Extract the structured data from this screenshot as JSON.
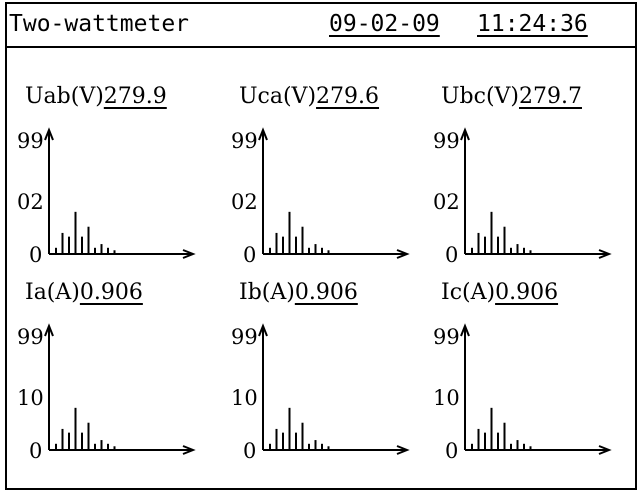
{
  "header": {
    "mode": "Two-wattmeter",
    "date": "09-02-09",
    "time": "11:24:36"
  },
  "panels": [
    {
      "id": "uab",
      "label": "Uab(V)",
      "value": "279.9",
      "y_ticks": [
        "99",
        "02",
        "0"
      ],
      "bars": [
        0.05,
        0.17,
        0.14,
        0.34,
        0.14,
        0.22,
        0.05,
        0.08,
        0.05,
        0.03
      ]
    },
    {
      "id": "uca",
      "label": "Uca(V)",
      "value": "279.6",
      "y_ticks": [
        "99",
        "02",
        "0"
      ],
      "bars": [
        0.05,
        0.17,
        0.14,
        0.34,
        0.14,
        0.22,
        0.05,
        0.08,
        0.05,
        0.03
      ]
    },
    {
      "id": "ubc",
      "label": "Ubc(V)",
      "value": "279.7",
      "y_ticks": [
        "99",
        "02",
        "0"
      ],
      "bars": [
        0.05,
        0.17,
        0.14,
        0.34,
        0.14,
        0.22,
        0.05,
        0.08,
        0.05,
        0.03
      ]
    },
    {
      "id": "ia",
      "label": "Ia(A)",
      "value": "0.906",
      "y_ticks": [
        "99",
        "10",
        "0"
      ],
      "bars": [
        0.05,
        0.17,
        0.14,
        0.34,
        0.14,
        0.22,
        0.05,
        0.08,
        0.05,
        0.03
      ]
    },
    {
      "id": "ib",
      "label": "Ib(A)",
      "value": "0.906",
      "y_ticks": [
        "99",
        "10",
        "0"
      ],
      "bars": [
        0.05,
        0.17,
        0.14,
        0.34,
        0.14,
        0.22,
        0.05,
        0.08,
        0.05,
        0.03
      ]
    },
    {
      "id": "ic",
      "label": "Ic(A)",
      "value": "0.906",
      "y_ticks": [
        "99",
        "10",
        "0"
      ],
      "bars": [
        0.05,
        0.17,
        0.14,
        0.34,
        0.14,
        0.22,
        0.05,
        0.08,
        0.05,
        0.03
      ]
    }
  ]
}
